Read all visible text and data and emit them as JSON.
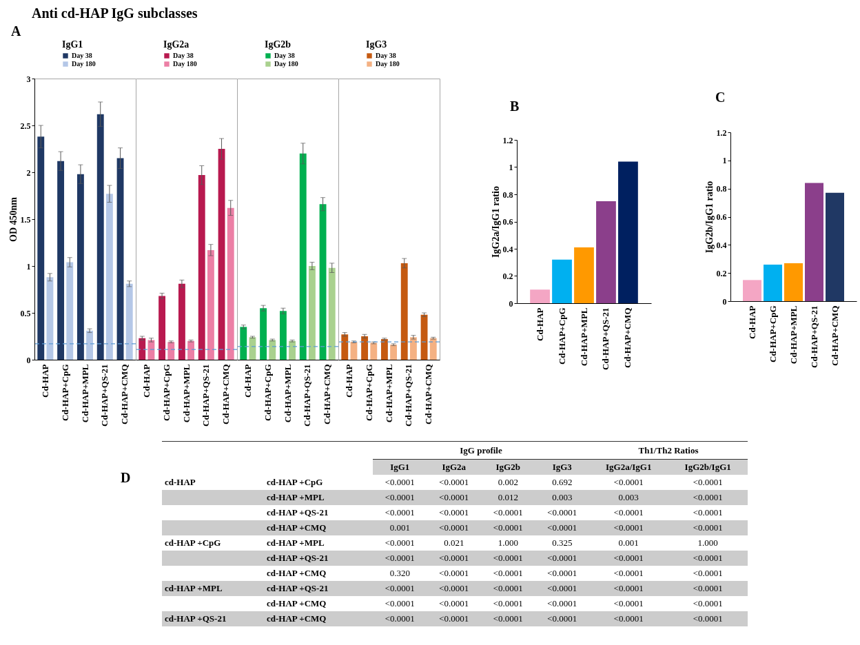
{
  "chart_data": [
    {
      "type": "bar",
      "title": "Anti cd-HAP IgG subclasses",
      "subtitle": "IgG1",
      "ylabel": "OD 450nm",
      "annotations": [
        "A"
      ],
      "categories": [
        "Cd-HAP",
        "Cd-HAP+CpG",
        "Cd-HAP+MPL",
        "Cd-HAP+QS-21",
        "Cd-HAP+CMQ"
      ],
      "series": [
        {
          "name": "Day 38",
          "color": "#1f3864",
          "values": [
            2.38,
            2.12,
            1.98,
            2.62,
            2.15
          ],
          "errors": [
            0.12,
            0.1,
            0.1,
            0.13,
            0.11
          ]
        },
        {
          "name": "Day 180",
          "color": "#b4c7e7",
          "values": [
            0.88,
            1.04,
            0.31,
            1.77,
            0.81
          ],
          "errors": [
            0.04,
            0.05,
            0.02,
            0.09,
            0.03
          ]
        }
      ],
      "ylim": [
        0,
        3
      ],
      "yticks": [
        0,
        0.5,
        1,
        1.5,
        2,
        2.5,
        3
      ],
      "ref_lines": [
        {
          "axis": "y",
          "value": 0.17,
          "color": "#5b9bd5",
          "line_style": "dashed"
        }
      ],
      "legend": "top"
    },
    {
      "type": "bar",
      "title": "IgG2a",
      "categories": [
        "Cd-HAP",
        "Cd-HAP+CpG",
        "Cd-HAP+MPL",
        "Cd-HAP+QS-21",
        "Cd-HAP+CMQ"
      ],
      "series": [
        {
          "name": "Day 38",
          "color": "#b8194f",
          "values": [
            0.23,
            0.68,
            0.81,
            1.97,
            2.25
          ],
          "errors": [
            0.02,
            0.03,
            0.04,
            0.1,
            0.11
          ]
        },
        {
          "name": "Day 180",
          "color": "#ec7fa5",
          "values": [
            0.21,
            0.19,
            0.2,
            1.17,
            1.62
          ],
          "errors": [
            0.02,
            0.01,
            0.01,
            0.06,
            0.08
          ]
        }
      ],
      "ylim": [
        0,
        3
      ],
      "tick_labels": "x",
      "ref_lines": [
        {
          "axis": "y",
          "value": 0.11,
          "color": "#5b9bd5",
          "line_style": "dashed"
        }
      ],
      "legend": "top"
    },
    {
      "type": "bar",
      "title": "IgG2b",
      "categories": [
        "Cd-HAP",
        "Cd-HAP+CpG",
        "Cd-HAP+MPL",
        "Cd-HAP+QS-21",
        "Cd-HAP+CMQ"
      ],
      "series": [
        {
          "name": "Day 38",
          "color": "#00b050",
          "values": [
            0.35,
            0.55,
            0.52,
            2.2,
            1.66
          ],
          "errors": [
            0.02,
            0.03,
            0.03,
            0.11,
            0.07
          ]
        },
        {
          "name": "Day 180",
          "color": "#a9d18e",
          "values": [
            0.24,
            0.21,
            0.2,
            1.0,
            0.98
          ],
          "errors": [
            0.01,
            0.01,
            0.01,
            0.04,
            0.05
          ]
        }
      ],
      "ylim": [
        0,
        3
      ],
      "tick_labels": "x",
      "ref_lines": [
        {
          "axis": "y",
          "value": 0.14,
          "color": "#5b9bd5",
          "line_style": "dashed"
        }
      ],
      "legend": "top"
    },
    {
      "type": "bar",
      "title": "IgG3",
      "categories": [
        "Cd-HAP",
        "Cd-HAP+CpG",
        "Cd-HAP+MPL",
        "Cd-HAP+QS-21",
        "Cd-HAP+CMQ"
      ],
      "series": [
        {
          "name": "Day 38",
          "color": "#c55a11",
          "values": [
            0.27,
            0.25,
            0.22,
            1.03,
            0.48
          ],
          "errors": [
            0.02,
            0.02,
            0.01,
            0.05,
            0.02
          ]
        },
        {
          "name": "Day 180",
          "color": "#f4b183",
          "values": [
            0.19,
            0.18,
            0.16,
            0.24,
            0.23
          ],
          "errors": [
            0.01,
            0.01,
            0.01,
            0.02,
            0.01
          ]
        }
      ],
      "ylim": [
        0,
        3
      ],
      "tick_labels": "x",
      "ref_lines": [
        {
          "axis": "y",
          "value": 0.19,
          "color": "#5b9bd5",
          "line_style": "dashed"
        }
      ],
      "legend": "top"
    },
    {
      "type": "bar",
      "ylabel": "IgG2a/IgG1  ratio",
      "annotations": [
        "B"
      ],
      "categories": [
        "Cd-HAP",
        "Cd-HAP+CpG",
        "Cd-HAP+MPL",
        "Cd-HAP+QS-21",
        "Cd-HAP+CMQ"
      ],
      "values": [
        0.1,
        0.32,
        0.41,
        0.75,
        1.04
      ],
      "colors": [
        "#f4a6c4",
        "#00b0f0",
        "#ff9900",
        "#8b3f8b",
        "#002060"
      ],
      "ylim": [
        0,
        1.2
      ],
      "yticks": [
        0,
        0.2,
        0.4,
        0.6,
        0.8,
        1,
        1.2
      ]
    },
    {
      "type": "bar",
      "ylabel": "IgG2b/IgG1  ratio",
      "annotations": [
        "C"
      ],
      "categories": [
        "Cd-HAP",
        "Cd-HAP+CpG",
        "Cd-HAP+MPL",
        "Cd-HAP+QS-21",
        "Cd-HAP+CMQ"
      ],
      "values": [
        0.15,
        0.26,
        0.27,
        0.84,
        0.77
      ],
      "colors": [
        "#f4a6c4",
        "#00b0f0",
        "#ff9900",
        "#8b3f8b",
        "#203864"
      ],
      "ylim": [
        0,
        1.2
      ],
      "yticks": [
        0,
        0.2,
        0.4,
        0.6,
        0.8,
        1,
        1.2
      ]
    },
    {
      "type": "other",
      "annotations": [
        "D",
        "IgG profile",
        "Th1/Th2 Ratios",
        "IgG1",
        "IgG2a",
        "IgG2b",
        "IgG3",
        "IgG2a/IgG1",
        "IgG2b/IgG1",
        "cd-HAP",
        "cd-HAP +CpG",
        "<0.0001",
        "<0.0001",
        "0.002",
        "0.692",
        "<0.0001",
        "<0.0001",
        null,
        "cd-HAP +MPL",
        "<0.0001",
        "<0.0001",
        "0.012",
        "0.003",
        "0.003",
        "<0.0001",
        null,
        "cd-HAP +QS-21",
        "<0.0001",
        "<0.0001",
        "<0.0001",
        "<0.0001",
        "<0.0001",
        "<0.0001",
        null,
        "cd-HAP +CMQ",
        "0.001",
        "<0.0001",
        "<0.0001",
        "<0.0001",
        "<0.0001",
        "<0.0001",
        "cd-HAP +CpG",
        "cd-HAP +MPL",
        "<0.0001",
        "0.021",
        "1.000",
        "0.325",
        "0.001",
        "1.000",
        null,
        "cd-HAP +QS-21",
        "<0.0001",
        "<0.0001",
        "<0.0001",
        "<0.0001",
        "<0.0001",
        "<0.0001",
        null,
        "cd-HAP +CMQ",
        "0.320",
        "<0.0001",
        "<0.0001",
        "<0.0001",
        "<0.0001",
        "<0.0001",
        "cd-HAP +MPL",
        "cd-HAP +QS-21",
        "<0.0001",
        "<0.0001",
        "<0.0001",
        "<0.0001",
        "<0.0001",
        "<0.0001",
        null,
        "cd-HAP +CMQ",
        "<0.0001",
        "<0.0001",
        "<0.0001",
        "<0.0001",
        "<0.0001",
        "<0.0001",
        "cd-HAP +QS-21",
        "cd-HAP +CMQ",
        "<0.0001",
        "<0.0001",
        "<0.0001",
        "<0.0001",
        "<0.0001",
        "<0.0001"
      ]
    }
  ]
}
